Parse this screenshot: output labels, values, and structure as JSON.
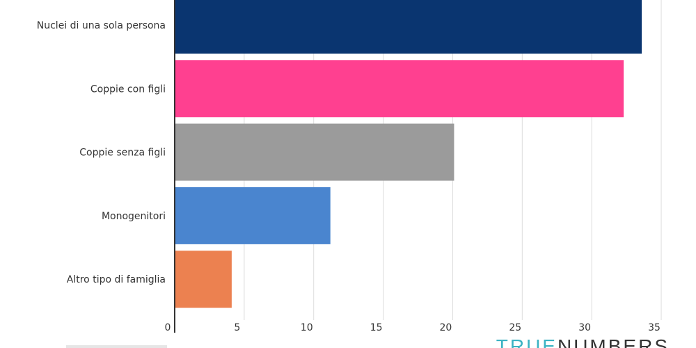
{
  "chart_data": {
    "type": "bar",
    "orientation": "horizontal",
    "categories": [
      "Nuclei di una sola persona",
      "Coppie con figli",
      "Coppie senza figli",
      "Monogenitori",
      "Altro tipo di famiglia"
    ],
    "values": [
      33.6,
      32.3,
      20.1,
      11.2,
      4.1
    ],
    "colors": [
      "#0a3570",
      "#ff4090",
      "#9b9b9b",
      "#4a85cf",
      "#ec8150"
    ],
    "xlim": [
      0,
      35.5
    ],
    "xticks": [
      "0",
      "5",
      "10",
      "15",
      "20",
      "25",
      "30",
      "35"
    ],
    "grid": true
  },
  "logo": {
    "part1": "TRUE",
    "part2": "NUMBERS"
  }
}
